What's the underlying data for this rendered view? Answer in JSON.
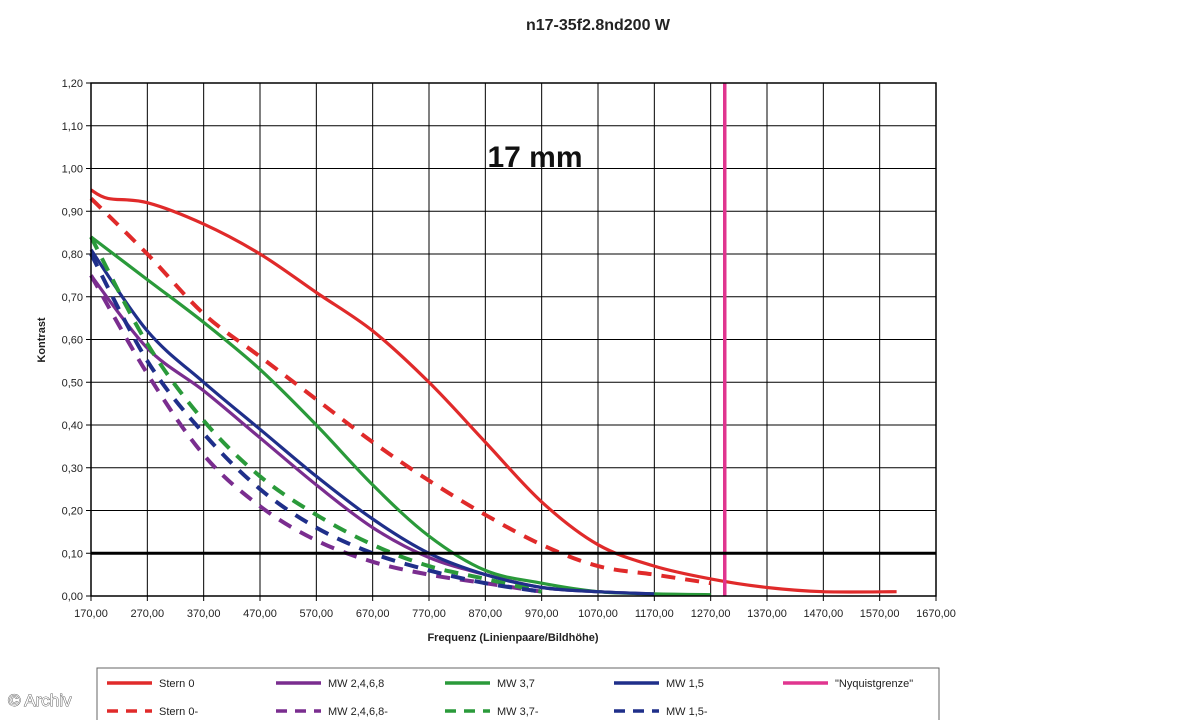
{
  "watermark": "© Archiv",
  "chart_data": {
    "type": "line",
    "title": "n17-35f2.8nd200 W",
    "annotation": "17 mm",
    "xlabel": "Frequenz (Linienpaare/Bildhöhe)",
    "ylabel": "Kontrast",
    "xlim": [
      170,
      1670
    ],
    "ylim": [
      0,
      1.2
    ],
    "x_ticks": [
      "170,00",
      "270,00",
      "370,00",
      "470,00",
      "570,00",
      "670,00",
      "770,00",
      "870,00",
      "970,00",
      "1070,00",
      "1170,00",
      "1270,00",
      "1370,00",
      "1470,00",
      "1570,00",
      "1670,00"
    ],
    "y_ticks": [
      "0,00",
      "0,10",
      "0,20",
      "0,30",
      "0,40",
      "0,50",
      "0,60",
      "0,70",
      "0,80",
      "0,90",
      "1,00",
      "1,10",
      "1,20"
    ],
    "grid": true,
    "legend_position": "bottom",
    "reference_lines": [
      {
        "orientation": "horizontal",
        "value": 0.1,
        "color": "#000000"
      }
    ],
    "series": [
      {
        "name": "Stern 0",
        "color": "#e02a2a",
        "dash": false,
        "x": [
          170,
          200,
          270,
          370,
          470,
          570,
          670,
          770,
          870,
          970,
          1070,
          1170,
          1270,
          1370,
          1470,
          1600
        ],
        "y": [
          0.95,
          0.93,
          0.92,
          0.87,
          0.8,
          0.71,
          0.62,
          0.5,
          0.36,
          0.22,
          0.12,
          0.07,
          0.04,
          0.02,
          0.01,
          0.01
        ]
      },
      {
        "name": "MW 2,4,6,8",
        "color": "#7a2d8f",
        "dash": false,
        "x": [
          170,
          270,
          370,
          470,
          570,
          670,
          770,
          870,
          970,
          1070,
          1170
        ],
        "y": [
          0.75,
          0.58,
          0.48,
          0.37,
          0.26,
          0.16,
          0.09,
          0.05,
          0.02,
          0.01,
          0.005
        ]
      },
      {
        "name": "MW 3,7",
        "color": "#2a9a3a",
        "dash": false,
        "x": [
          170,
          270,
          370,
          470,
          570,
          670,
          770,
          870,
          970,
          1070,
          1170,
          1270
        ],
        "y": [
          0.84,
          0.74,
          0.64,
          0.53,
          0.4,
          0.26,
          0.14,
          0.06,
          0.03,
          0.01,
          0.005,
          0.003
        ]
      },
      {
        "name": "MW 1,5",
        "color": "#1f2f8a",
        "dash": false,
        "x": [
          170,
          270,
          370,
          470,
          570,
          670,
          770,
          870,
          970,
          1070,
          1170
        ],
        "y": [
          0.81,
          0.62,
          0.5,
          0.39,
          0.28,
          0.18,
          0.1,
          0.05,
          0.02,
          0.01,
          0.005
        ]
      },
      {
        "name": "\"Nyquistgrenze\"",
        "color": "#e0358f",
        "dash": false,
        "vertical_at": 1295
      },
      {
        "name": "Stern 0-",
        "color": "#e02a2a",
        "dash": true,
        "x": [
          170,
          270,
          370,
          470,
          570,
          670,
          770,
          870,
          970,
          1070,
          1170,
          1270
        ],
        "y": [
          0.93,
          0.8,
          0.66,
          0.56,
          0.46,
          0.36,
          0.27,
          0.19,
          0.12,
          0.07,
          0.05,
          0.03
        ]
      },
      {
        "name": "MW 2,4,6,8-",
        "color": "#7a2d8f",
        "dash": true,
        "x": [
          170,
          270,
          370,
          470,
          570,
          670,
          770,
          870,
          970
        ],
        "y": [
          0.75,
          0.52,
          0.33,
          0.21,
          0.13,
          0.08,
          0.05,
          0.03,
          0.01
        ]
      },
      {
        "name": "MW 3,7-",
        "color": "#2a9a3a",
        "dash": true,
        "x": [
          170,
          270,
          370,
          470,
          570,
          670,
          770,
          870,
          970
        ],
        "y": [
          0.84,
          0.59,
          0.41,
          0.28,
          0.19,
          0.12,
          0.07,
          0.04,
          0.01
        ]
      },
      {
        "name": "MW 1,5-",
        "color": "#1f2f8a",
        "dash": true,
        "x": [
          170,
          270,
          370,
          470,
          570,
          670,
          770,
          870,
          970
        ],
        "y": [
          0.8,
          0.55,
          0.38,
          0.25,
          0.16,
          0.1,
          0.06,
          0.03,
          0.01
        ]
      }
    ]
  }
}
